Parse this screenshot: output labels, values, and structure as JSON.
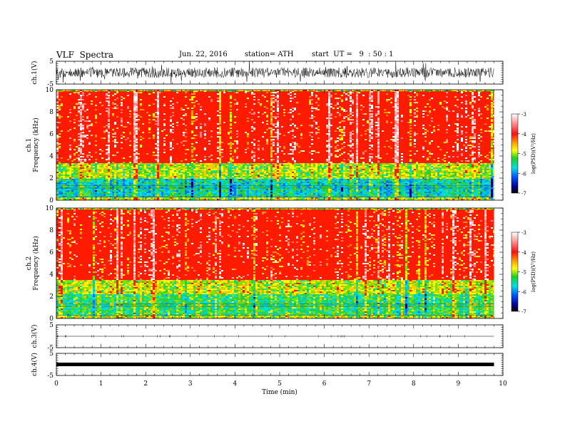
{
  "header": {
    "title": "VLF  Spectra",
    "date": "Jun. 22, 2016",
    "station": "station= ATH",
    "start": "start  UT =   9  : 50 : 1"
  },
  "chart_data": [
    {
      "type": "line",
      "panel": "ch1-waveform",
      "ylabel": "ch.1(V)",
      "ylim": [
        -5,
        5
      ],
      "y_ticks": [
        "5",
        "-5"
      ],
      "x_ticks": [
        "0",
        "1",
        "2",
        "3",
        "4",
        "5",
        "6",
        "7",
        "8",
        "9",
        "10"
      ],
      "xlim": [
        0,
        10
      ],
      "series": [
        {
          "x": [
            0,
            9.8
          ],
          "description_amplitude_v": 1.5
        }
      ]
    },
    {
      "type": "heatmap",
      "panel": "ch1-spectrogram",
      "ylabel": "ch.1\nFrequency  (kHz)",
      "ylim": [
        0,
        10
      ],
      "y_ticks": [
        "0",
        "2",
        "4",
        "6",
        "8",
        "10"
      ],
      "xlim": [
        0,
        10
      ],
      "x_data_end": 9.8,
      "colorbar": {
        "label": "log(PSD)(V²/Hz)",
        "ticks": [
          "-3",
          "-4",
          "-5",
          "-6",
          "-7"
        ],
        "range": [
          -7,
          -3
        ]
      },
      "bands_khz_to_level": [
        {
          "f0": 0.0,
          "f1": 0.3,
          "level": -5.0
        },
        {
          "f0": 0.3,
          "f1": 2.0,
          "level": -5.9
        },
        {
          "f0": 2.0,
          "f1": 3.3,
          "level": -5.1
        },
        {
          "f0": 3.3,
          "f1": 10.0,
          "level": -3.9
        }
      ]
    },
    {
      "type": "heatmap",
      "panel": "ch2-spectrogram",
      "ylabel": "ch.2\nFrequency  (kHz)",
      "ylim": [
        0,
        10
      ],
      "y_ticks": [
        "0",
        "2",
        "4",
        "6",
        "8",
        "10"
      ],
      "xlim": [
        0,
        10
      ],
      "x_data_end": 9.8,
      "colorbar": {
        "label": "log(PSD)(V²/Hz)",
        "ticks": [
          "-3",
          "-4",
          "-5",
          "-6",
          "-7"
        ],
        "range": [
          -7,
          -3
        ]
      },
      "bands_khz_to_level": [
        {
          "f0": 0.0,
          "f1": 0.3,
          "level": -5.0
        },
        {
          "f0": 0.3,
          "f1": 2.2,
          "level": -5.5
        },
        {
          "f0": 2.2,
          "f1": 3.5,
          "level": -5.0
        },
        {
          "f0": 3.5,
          "f1": 10.0,
          "level": -3.9
        }
      ]
    },
    {
      "type": "line",
      "panel": "ch3-waveform",
      "ylabel": "ch.3(V)",
      "ylim": [
        -5,
        5
      ],
      "y_ticks": [
        "5",
        "-5"
      ],
      "xlim": [
        0,
        10
      ],
      "series": [
        {
          "x": [
            0,
            9.8
          ],
          "y": [
            0,
            0
          ]
        }
      ]
    },
    {
      "type": "line",
      "panel": "ch4-waveform",
      "ylabel": "ch.4(V)",
      "ylim": [
        -5,
        5
      ],
      "y_ticks": [
        "5",
        "-5"
      ],
      "xlim": [
        0,
        10
      ],
      "xlabel": "Time  (min)",
      "series": [
        {
          "x": [
            0,
            9.8
          ],
          "y": [
            0,
            0
          ]
        }
      ]
    }
  ],
  "palette": {
    "cb_top": "#ffe6ef",
    "cb_stops": [
      "#ffffff",
      "#ff8a8a",
      "#ff2020",
      "#e83000",
      "#ffff00",
      "#30d000",
      "#00e0e0",
      "#0060ff",
      "#000080",
      "#000000"
    ]
  }
}
